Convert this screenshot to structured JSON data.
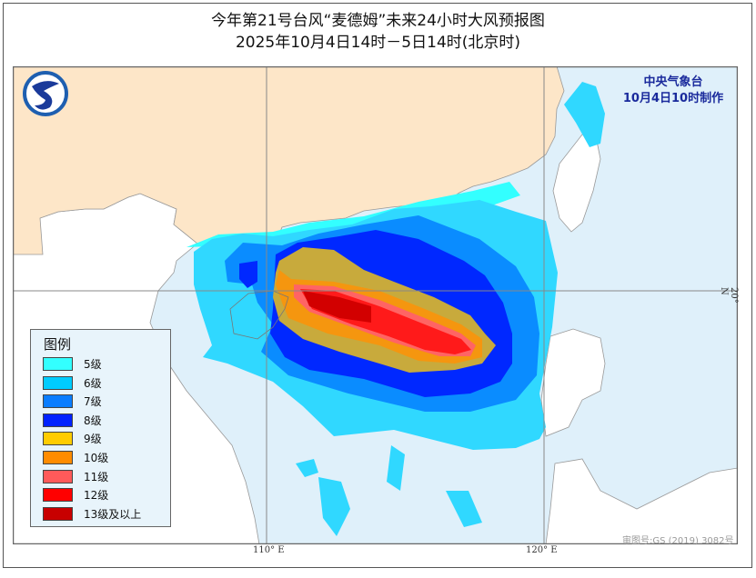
{
  "title": {
    "line1": "今年第21号台风“麦德姆”未来24小时大风预报图",
    "line2": "2025年10月4日14时－5日14时(北京时)"
  },
  "agency": {
    "name": "中央气象台",
    "issued": "10月4日10时制作",
    "logo": "cma-logo"
  },
  "axes": {
    "lon_labels": [
      "110° E",
      "120° E"
    ],
    "lat_labels": [
      "20° N"
    ]
  },
  "legend": {
    "title": "图例",
    "items": [
      {
        "label": "5级",
        "color": "#33ffff"
      },
      {
        "label": "6级",
        "color": "#00ccff"
      },
      {
        "label": "7级",
        "color": "#0a7dff"
      },
      {
        "label": "8级",
        "color": "#0022ff"
      },
      {
        "label": "9级",
        "color": "#ffcc00"
      },
      {
        "label": "10级",
        "color": "#ff8c00"
      },
      {
        "label": "11级",
        "color": "#ff5a5a"
      },
      {
        "label": "12级",
        "color": "#ff0000"
      },
      {
        "label": "13级及以上",
        "color": "#c80000"
      }
    ]
  },
  "colors": {
    "sea": "#dff0fa",
    "china_land": "#fde6c8",
    "other_land": "#ffffff"
  },
  "approval": "审图号:GS (2019) 3082号"
}
